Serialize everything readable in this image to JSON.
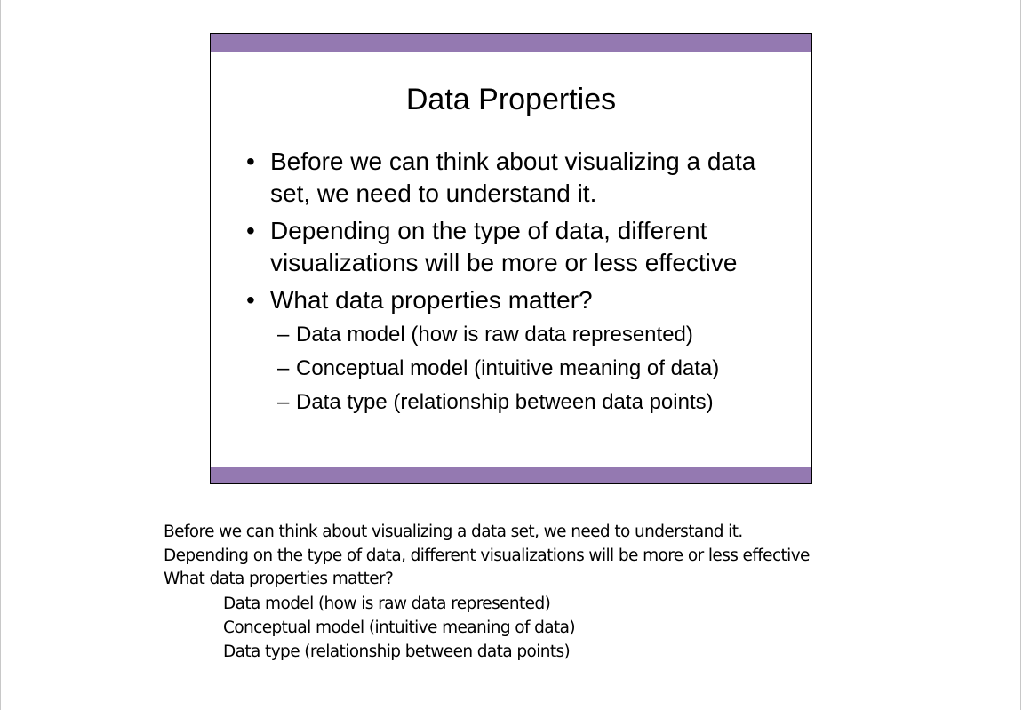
{
  "slide": {
    "title": "Data Properties",
    "bullets": [
      {
        "text": "Before we can think about visualizing a data set, we need to understand it."
      },
      {
        "text": "Depending on the type of data, different visualizations will be more or less effective"
      },
      {
        "text": "What data properties matter?"
      }
    ],
    "sub_bullets": [
      "Data model (how is raw data represented)",
      "Conceptual model (intuitive meaning of data)",
      "Data type (relationship between data points)"
    ],
    "bullet_glyph": "•",
    "dash_glyph": "–",
    "band_color": "#9479b1"
  },
  "notes": {
    "lines": [
      "Before we can think about visualizing a data set, we need to understand it.",
      "Depending on the type of data, different visualizations will be more or less effective",
      "What data properties matter?"
    ],
    "sub_lines": [
      "Data model (how is raw data represented)",
      "Conceptual model (intuitive meaning of data)",
      "Data type (relationship between data points)"
    ]
  }
}
